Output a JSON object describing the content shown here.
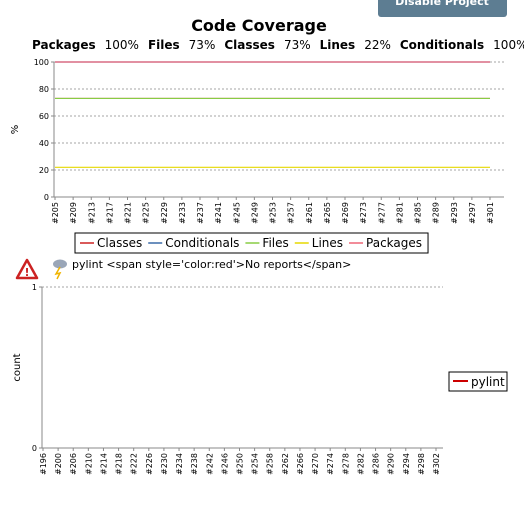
{
  "button": "Disable Project",
  "summary": [
    "Packages",
    "100%",
    "Files",
    "73%",
    "Classes",
    "73%",
    "Lines",
    "22%",
    "Conditionals",
    "100%"
  ],
  "chart_data": [
    {
      "type": "line",
      "title": "Code Coverage",
      "y_label": "%",
      "categories": [
        "#205",
        "#209",
        "#213",
        "#217",
        "#221",
        "#225",
        "#229",
        "#233",
        "#237",
        "#241",
        "#245",
        "#249",
        "#253",
        "#257",
        "#261",
        "#265",
        "#269",
        "#273",
        "#277",
        "#281",
        "#285",
        "#289",
        "#293",
        "#297",
        "#301"
      ],
      "series": [
        {
          "name": "Classes",
          "color": "#cc2222",
          "values": [
            73,
            73,
            73,
            73,
            73,
            73,
            73,
            73,
            73,
            73,
            73,
            73,
            73,
            73,
            73,
            73,
            73,
            73,
            73,
            73,
            73,
            73,
            73,
            73,
            73
          ]
        },
        {
          "name": "Conditionals",
          "color": "#3a6aa8",
          "values": [
            100,
            100,
            100,
            100,
            100,
            100,
            100,
            100,
            100,
            100,
            100,
            100,
            100,
            100,
            100,
            100,
            100,
            100,
            100,
            100,
            100,
            100,
            100,
            100,
            100
          ]
        },
        {
          "name": "Files",
          "color": "#88cc44",
          "values": [
            73,
            73,
            73,
            73,
            73,
            73,
            73,
            73,
            73,
            73,
            73,
            73,
            73,
            73,
            73,
            73,
            73,
            73,
            73,
            73,
            73,
            73,
            73,
            73,
            73
          ]
        },
        {
          "name": "Lines",
          "color": "#e6d800",
          "values": [
            22,
            22,
            22,
            22,
            22,
            22,
            22,
            22,
            22,
            22,
            22,
            22,
            22,
            22,
            22,
            22,
            22,
            22,
            22,
            22,
            22,
            22,
            22,
            22,
            22
          ]
        },
        {
          "name": "Packages",
          "color": "#ee6677",
          "values": [
            100,
            100,
            100,
            100,
            100,
            100,
            100,
            100,
            100,
            100,
            100,
            100,
            100,
            100,
            100,
            100,
            100,
            100,
            100,
            100,
            100,
            100,
            100,
            100,
            100
          ]
        }
      ],
      "ylim": [
        0,
        100
      ],
      "yticks": [
        0,
        20,
        40,
        60,
        80,
        100
      ],
      "grid": true,
      "legend": "bottom"
    },
    {
      "type": "line",
      "title": "pylint <span style='color:red'>No reports</span>",
      "y_label": "count",
      "categories": [
        "#196",
        "#200",
        "#206",
        "#210",
        "#214",
        "#218",
        "#222",
        "#226",
        "#230",
        "#234",
        "#238",
        "#242",
        "#246",
        "#250",
        "#254",
        "#258",
        "#262",
        "#266",
        "#270",
        "#274",
        "#278",
        "#282",
        "#286",
        "#290",
        "#294",
        "#298",
        "#302"
      ],
      "series": [
        {
          "name": "pylint",
          "color": "#cc0000",
          "values": [
            null,
            null,
            null,
            null,
            null,
            null,
            null,
            null,
            null,
            null,
            null,
            null,
            null,
            null,
            null,
            null,
            null,
            null,
            null,
            null,
            null,
            null,
            null,
            null,
            null,
            null,
            null
          ]
        }
      ],
      "ylim": [
        0,
        1
      ],
      "yticks": [
        0,
        1
      ],
      "grid": true,
      "legend": "right"
    }
  ]
}
